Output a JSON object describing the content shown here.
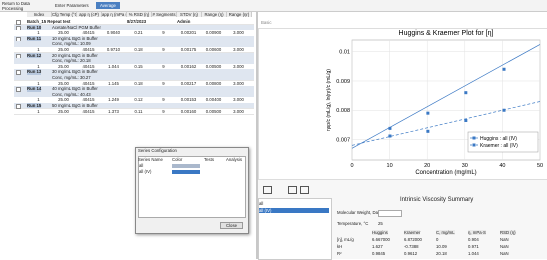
{
  "toolbar": {
    "back": "Return to Data Processing",
    "params": "Enter Parameters",
    "tab": "Average"
  },
  "table": {
    "headers": [
      "Index",
      "Cfg Temp (°C)",
      "app η (cP)",
      "app η (mPa s)",
      "% RSD (η)",
      "# Segments",
      "STDV (η)",
      "Range (η)",
      "Range (ηr)"
    ],
    "rows": [
      {
        "style": "batch",
        "cells": [
          "Batch_15 Repeat test",
          null,
          null,
          null,
          "8/27/2023",
          null,
          "Admin"
        ]
      },
      {
        "style": "run",
        "cells": [
          "Run 10",
          "Acetate/NaCl PGM Buffer"
        ]
      },
      {
        "style": "data",
        "cells": [
          "1",
          "25.00",
          "40415",
          "0.9040",
          "0.21",
          "9",
          "0.00201",
          "0.00900",
          "3.000"
        ]
      },
      {
        "style": "run",
        "cells": [
          "Run 11",
          "10 mg/mL BgG in Buffer"
        ]
      },
      {
        "style": "sub",
        "cells": [
          null,
          "Conc, mg/mL: 10.09"
        ]
      },
      {
        "style": "data",
        "cells": [
          "1",
          "25.00",
          "40415",
          "0.9710",
          "0.18",
          "9",
          "0.00175",
          "0.00600",
          "3.000"
        ]
      },
      {
        "style": "run",
        "cells": [
          "Run 12",
          "20 mg/mL BgG in Buffer"
        ]
      },
      {
        "style": "sub",
        "cells": [
          null,
          "Conc, mg/mL: 20.18"
        ]
      },
      {
        "style": "data",
        "cells": [
          "1",
          "25.00",
          "40415",
          "1.044",
          "0.15",
          "9",
          "0.00162",
          "0.00500",
          "3.000"
        ]
      },
      {
        "style": "run",
        "cells": [
          "Run 13",
          "30 mg/mL BgG in Buffer"
        ]
      },
      {
        "style": "sub",
        "cells": [
          null,
          "Conc, mg/mL: 30.27"
        ]
      },
      {
        "style": "data",
        "cells": [
          "1",
          "25.00",
          "40415",
          "1.145",
          "0.18",
          "9",
          "0.00217",
          "0.00800",
          "3.000"
        ]
      },
      {
        "style": "run",
        "cells": [
          "Run 14",
          "40 mg/mL BgG in Buffer"
        ]
      },
      {
        "style": "sub",
        "cells": [
          null,
          "Conc, mg/mL: 40.43"
        ]
      },
      {
        "style": "data",
        "cells": [
          "1",
          "25.00",
          "40415",
          "1.249",
          "0.12",
          "9",
          "0.00153",
          "0.00400",
          "3.000"
        ]
      },
      {
        "style": "run",
        "cells": [
          "Run 15",
          "50 mg/mL BgG in Buffer"
        ]
      },
      {
        "style": "data",
        "cells": [
          "1",
          "25.00",
          "40415",
          "1.373",
          "0.11",
          "9",
          "0.00160",
          "0.00500",
          "3.000"
        ]
      }
    ]
  },
  "dialog": {
    "title": "Series Configuration",
    "headers": [
      "Series Name",
      "Color",
      "Tests",
      "Analysis"
    ],
    "rows": [
      "all",
      "all (IV)"
    ],
    "button": "Close"
  },
  "panel_tab": "Basic",
  "chart_data": {
    "type": "line",
    "title": "Huggins & Kraemer Plot for [η]",
    "x_label": "Concentration (mg/mL)",
    "y_label": "ηsp/c (mL/g), ln(ηr)/c (mL/g)",
    "xlim": [
      0,
      50
    ],
    "xticks": [
      0,
      10,
      20,
      30,
      40,
      50
    ],
    "ylim": [
      0.0063,
      0.0104
    ],
    "yticks": [
      0.007,
      0.008,
      0.009,
      0.01
    ],
    "grid": true,
    "legend": "lower right",
    "series": [
      {
        "name": "Huggins : all (IV)",
        "color": "#3a78c4",
        "line_style": "solid",
        "x": [
          10.09,
          20.18,
          30.27,
          40.43
        ],
        "values": [
          0.00738,
          0.0079,
          0.0086,
          0.0094
        ],
        "fit": {
          "x": [
            0,
            50
          ],
          "values": [
            0.0067,
            0.01025
          ]
        }
      },
      {
        "name": "Kraemer : all (IV)",
        "color": "#3a78c4",
        "line_style": "dashed",
        "x": [
          10.09,
          20.18,
          30.27,
          40.43
        ],
        "values": [
          0.00712,
          0.00728,
          0.00765,
          0.008
        ],
        "fit": {
          "x": [
            0,
            50
          ],
          "values": [
            0.0068,
            0.0083
          ]
        }
      }
    ]
  },
  "series_list": [
    "all",
    "all (IV)"
  ],
  "summary": {
    "title": "Intrinsic Viscosity Summary",
    "mw_label": "Molecular Weight, Da",
    "temp_label": "Temperature, °C",
    "temp": "25",
    "headers": [
      null,
      "Huggins",
      "Kraemer",
      "C, mg/mL",
      "η, mPa·S",
      "RSD (η)"
    ],
    "rows": [
      [
        "[η], mL/g",
        "6.667000",
        "6.872000",
        "0",
        "0.904",
        "NaN"
      ],
      [
        "kH",
        "1.627",
        "-0.7388",
        "10.09",
        "0.971",
        "NaN"
      ],
      [
        "R²",
        "0.9845",
        "0.9612",
        "20.18",
        "1.044",
        "NaN"
      ]
    ]
  }
}
